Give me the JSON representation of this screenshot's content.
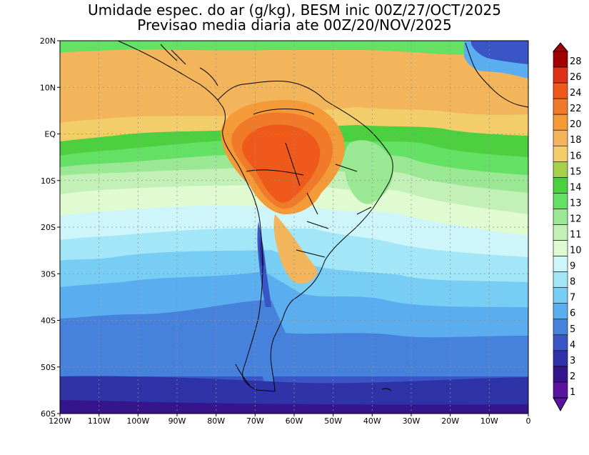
{
  "title": {
    "line1": "Umidade espec. do ar (g/kg), BESM inic 00Z/27/OCT/2025",
    "line2": "Previsao media diaria ate 00Z/20/NOV/2025"
  },
  "map": {
    "lon_range": [
      -120,
      0
    ],
    "lat_range": [
      -60,
      20
    ],
    "lon_ticks": [
      {
        "value": -120,
        "label": "120W"
      },
      {
        "value": -110,
        "label": "110W"
      },
      {
        "value": -100,
        "label": "100W"
      },
      {
        "value": -90,
        "label": "90W"
      },
      {
        "value": -80,
        "label": "80W"
      },
      {
        "value": -70,
        "label": "70W"
      },
      {
        "value": -60,
        "label": "60W"
      },
      {
        "value": -50,
        "label": "50W"
      },
      {
        "value": -40,
        "label": "40W"
      },
      {
        "value": -30,
        "label": "30W"
      },
      {
        "value": -20,
        "label": "20W"
      },
      {
        "value": -10,
        "label": "10W"
      },
      {
        "value": 0,
        "label": "0"
      }
    ],
    "lat_ticks": [
      {
        "value": 20,
        "label": "20N"
      },
      {
        "value": 10,
        "label": "10N"
      },
      {
        "value": 0,
        "label": "EQ"
      },
      {
        "value": -10,
        "label": "10S"
      },
      {
        "value": -20,
        "label": "20S"
      },
      {
        "value": -30,
        "label": "30S"
      },
      {
        "value": -40,
        "label": "40S"
      },
      {
        "value": -50,
        "label": "50S"
      },
      {
        "value": -60,
        "label": "60S"
      }
    ],
    "grid": true
  },
  "colorbar": {
    "levels": [
      "28",
      "26",
      "24",
      "22",
      "20",
      "18",
      "16",
      "15",
      "14",
      "13",
      "12",
      "11",
      "10",
      "9",
      "8",
      "7",
      "6",
      "5",
      "4",
      "3",
      "2",
      "1"
    ],
    "colors": [
      "#a00000",
      "#e03218",
      "#ef5a1c",
      "#f07a2a",
      "#f59a38",
      "#f2b55c",
      "#f2cd6a",
      "#a6d04c",
      "#4cd040",
      "#64e064",
      "#9ae894",
      "#c2f0b6",
      "#e0fad2",
      "#cdf5fa",
      "#a2e6f8",
      "#78cdf4",
      "#5aaef0",
      "#4682dc",
      "#3a56c6",
      "#2e34a8",
      "#36148c",
      "#5a14a0"
    ]
  }
}
